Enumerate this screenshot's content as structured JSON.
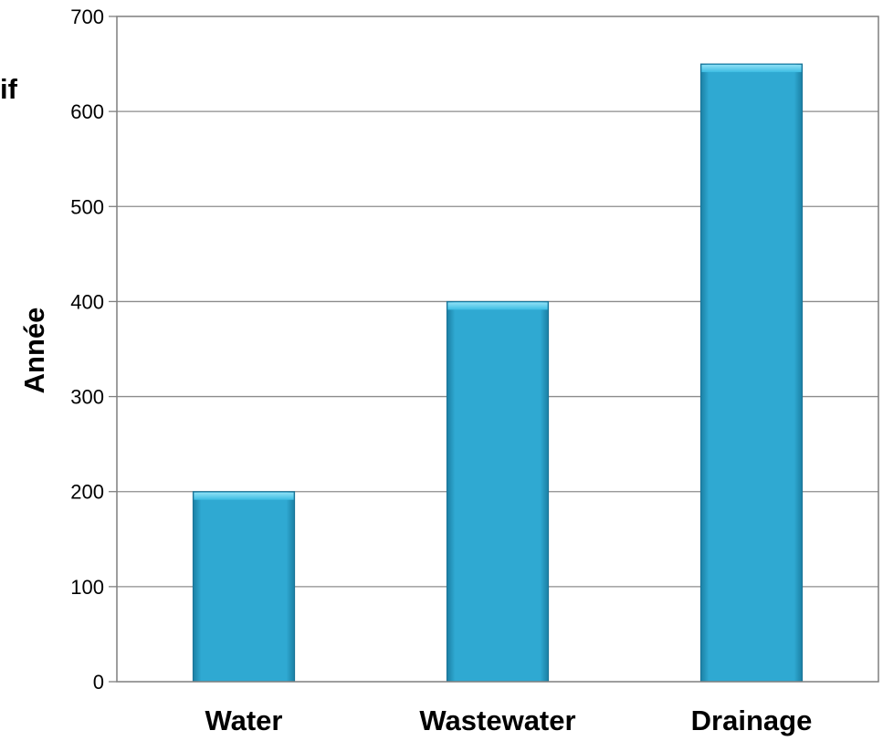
{
  "chart_data": {
    "type": "bar",
    "categories": [
      "Water",
      "Wastewater",
      "Drainage"
    ],
    "values": [
      200,
      400,
      650
    ],
    "title": "",
    "xlabel": "",
    "ylabel": "Année",
    "ylim": [
      0,
      700
    ],
    "yticks": [
      0,
      100,
      200,
      300,
      400,
      500,
      600,
      700
    ],
    "grid": true,
    "legend": "none",
    "bar_color": "#2eaad3"
  },
  "partial_text": "if"
}
